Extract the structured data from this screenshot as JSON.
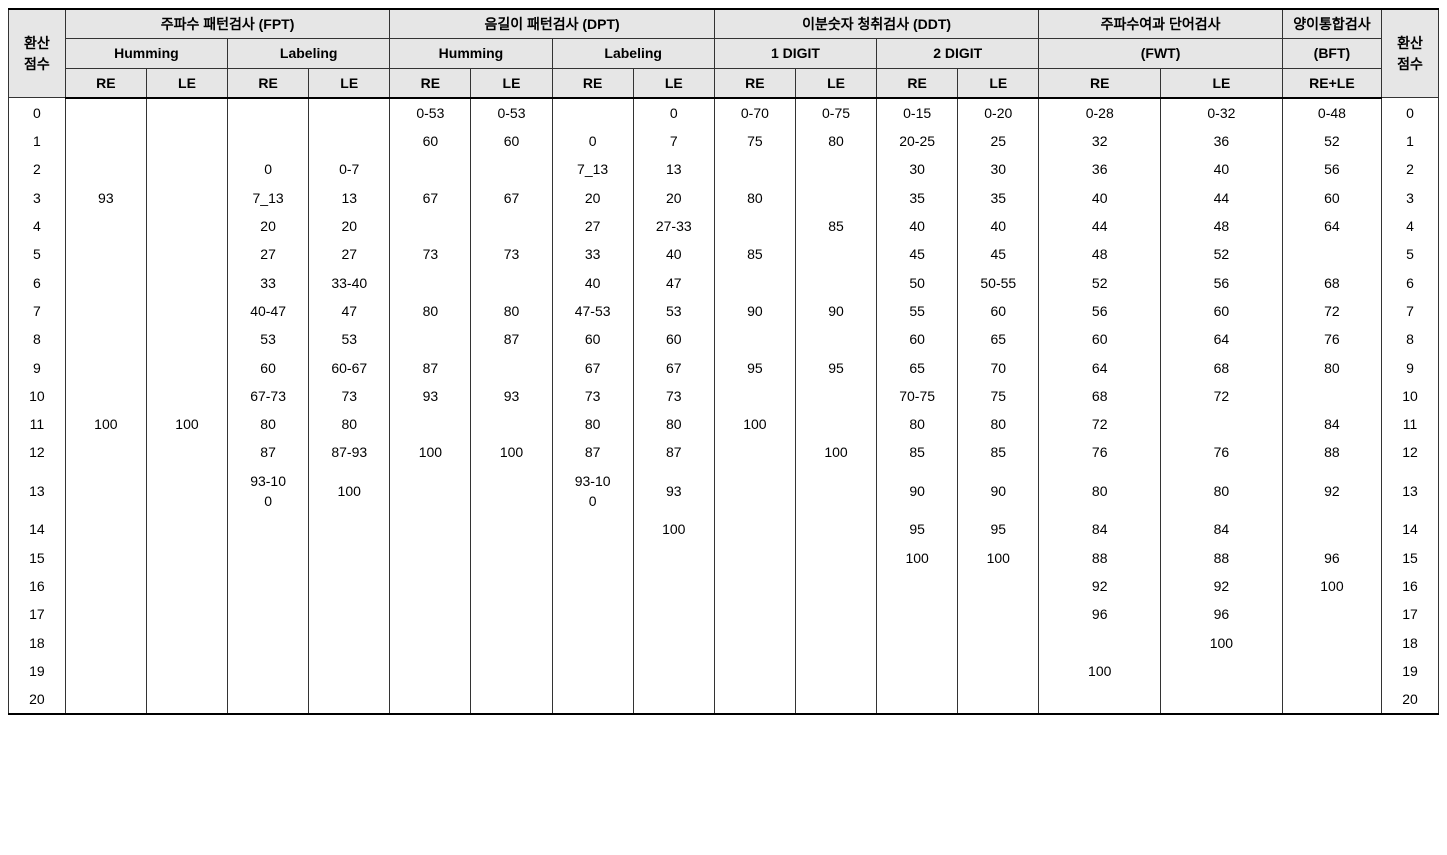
{
  "type": "table",
  "background_color": "#ffffff",
  "header_background": "#e6e6e6",
  "border_color": "#333333",
  "font_family": "Malgun Gothic",
  "body_fontsize": 14,
  "headers": {
    "score": "환산\n점수",
    "groups": [
      {
        "title": "주파수 패턴검사 (FPT)",
        "subs": [
          "Humming",
          "Labeling"
        ],
        "leaves": [
          "RE",
          "LE",
          "RE",
          "LE"
        ]
      },
      {
        "title": "음길이 패턴검사 (DPT)",
        "subs": [
          "Humming",
          "Labeling"
        ],
        "leaves": [
          "RE",
          "LE",
          "RE",
          "LE"
        ]
      },
      {
        "title": "이분숫자 청취검사 (DDT)",
        "subs": [
          "1 DIGIT",
          "2 DIGIT"
        ],
        "leaves": [
          "RE",
          "LE",
          "RE",
          "LE"
        ]
      },
      {
        "title": "주파수여과 단어검사",
        "sub_merged": "(FWT)",
        "leaves": [
          "RE",
          "LE"
        ]
      },
      {
        "title": "양이통합검사",
        "sub_merged": "(BFT)",
        "leaves": [
          "RE+LE"
        ]
      }
    ]
  },
  "columns": [
    "score_left",
    "fpt_hum_re",
    "fpt_hum_le",
    "fpt_lab_re",
    "fpt_lab_le",
    "dpt_hum_re",
    "dpt_hum_le",
    "dpt_lab_re",
    "dpt_lab_le",
    "ddt_1_re",
    "ddt_1_le",
    "ddt_2_re",
    "ddt_2_le",
    "fwt_re",
    "fwt_le",
    "bft",
    "score_right"
  ],
  "rows": [
    [
      "0",
      "",
      "",
      "",
      "",
      "0-53",
      "0-53",
      "",
      "0",
      "0-70",
      "0-75",
      "0-15",
      "0-20",
      "0-28",
      "0-32",
      "0-48",
      "0"
    ],
    [
      "1",
      "",
      "",
      "",
      "",
      "60",
      "60",
      "0",
      "7",
      "75",
      "80",
      "20-25",
      "25",
      "32",
      "36",
      "52",
      "1"
    ],
    [
      "2",
      "",
      "",
      "0",
      "0-7",
      "",
      "",
      "7_13",
      "13",
      "",
      "",
      "30",
      "30",
      "36",
      "40",
      "56",
      "2"
    ],
    [
      "3",
      "93",
      "",
      "7_13",
      "13",
      "67",
      "67",
      "20",
      "20",
      "80",
      "",
      "35",
      "35",
      "40",
      "44",
      "60",
      "3"
    ],
    [
      "4",
      "",
      "",
      "20",
      "20",
      "",
      "",
      "27",
      "27-33",
      "",
      "85",
      "40",
      "40",
      "44",
      "48",
      "64",
      "4"
    ],
    [
      "5",
      "",
      "",
      "27",
      "27",
      "73",
      "73",
      "33",
      "40",
      "85",
      "",
      "45",
      "45",
      "48",
      "52",
      "",
      "5"
    ],
    [
      "6",
      "",
      "",
      "33",
      "33-40",
      "",
      "",
      "40",
      "47",
      "",
      "",
      "50",
      "50-55",
      "52",
      "56",
      "68",
      "6"
    ],
    [
      "7",
      "",
      "",
      "40-47",
      "47",
      "80",
      "80",
      "47-53",
      "53",
      "90",
      "90",
      "55",
      "60",
      "56",
      "60",
      "72",
      "7"
    ],
    [
      "8",
      "",
      "",
      "53",
      "53",
      "",
      "87",
      "60",
      "60",
      "",
      "",
      "60",
      "65",
      "60",
      "64",
      "76",
      "8"
    ],
    [
      "9",
      "",
      "",
      "60",
      "60-67",
      "87",
      "",
      "67",
      "67",
      "95",
      "95",
      "65",
      "70",
      "64",
      "68",
      "80",
      "9"
    ],
    [
      "10",
      "",
      "",
      "67-73",
      "73",
      "93",
      "93",
      "73",
      "73",
      "",
      "",
      "70-75",
      "75",
      "68",
      "72",
      "",
      "10"
    ],
    [
      "11",
      "100",
      "100",
      "80",
      "80",
      "",
      "",
      "80",
      "80",
      "100",
      "",
      "80",
      "80",
      "72",
      "",
      "84",
      "11"
    ],
    [
      "12",
      "",
      "",
      "87",
      "87-93",
      "100",
      "100",
      "87",
      "87",
      "",
      "100",
      "85",
      "85",
      "76",
      "76",
      "88",
      "12"
    ],
    [
      "13",
      "",
      "",
      "93-10\n0",
      "100",
      "",
      "",
      "93-10\n0",
      "93",
      "",
      "",
      "90",
      "90",
      "80",
      "80",
      "92",
      "13"
    ],
    [
      "14",
      "",
      "",
      "",
      "",
      "",
      "",
      "",
      "100",
      "",
      "",
      "95",
      "95",
      "84",
      "84",
      "",
      "14"
    ],
    [
      "15",
      "",
      "",
      "",
      "",
      "",
      "",
      "",
      "",
      "",
      "",
      "100",
      "100",
      "88",
      "88",
      "96",
      "15"
    ],
    [
      "16",
      "",
      "",
      "",
      "",
      "",
      "",
      "",
      "",
      "",
      "",
      "",
      "",
      "92",
      "92",
      "100",
      "16"
    ],
    [
      "17",
      "",
      "",
      "",
      "",
      "",
      "",
      "",
      "",
      "",
      "",
      "",
      "",
      "96",
      "96",
      "",
      "17"
    ],
    [
      "18",
      "",
      "",
      "",
      "",
      "",
      "",
      "",
      "",
      "",
      "",
      "",
      "",
      "",
      "100",
      "",
      "18"
    ],
    [
      "19",
      "",
      "",
      "",
      "",
      "",
      "",
      "",
      "",
      "",
      "",
      "",
      "",
      "100",
      "",
      "",
      "19"
    ],
    [
      "20",
      "",
      "",
      "",
      "",
      "",
      "",
      "",
      "",
      "",
      "",
      "",
      "",
      "",
      "",
      "",
      "20"
    ]
  ]
}
